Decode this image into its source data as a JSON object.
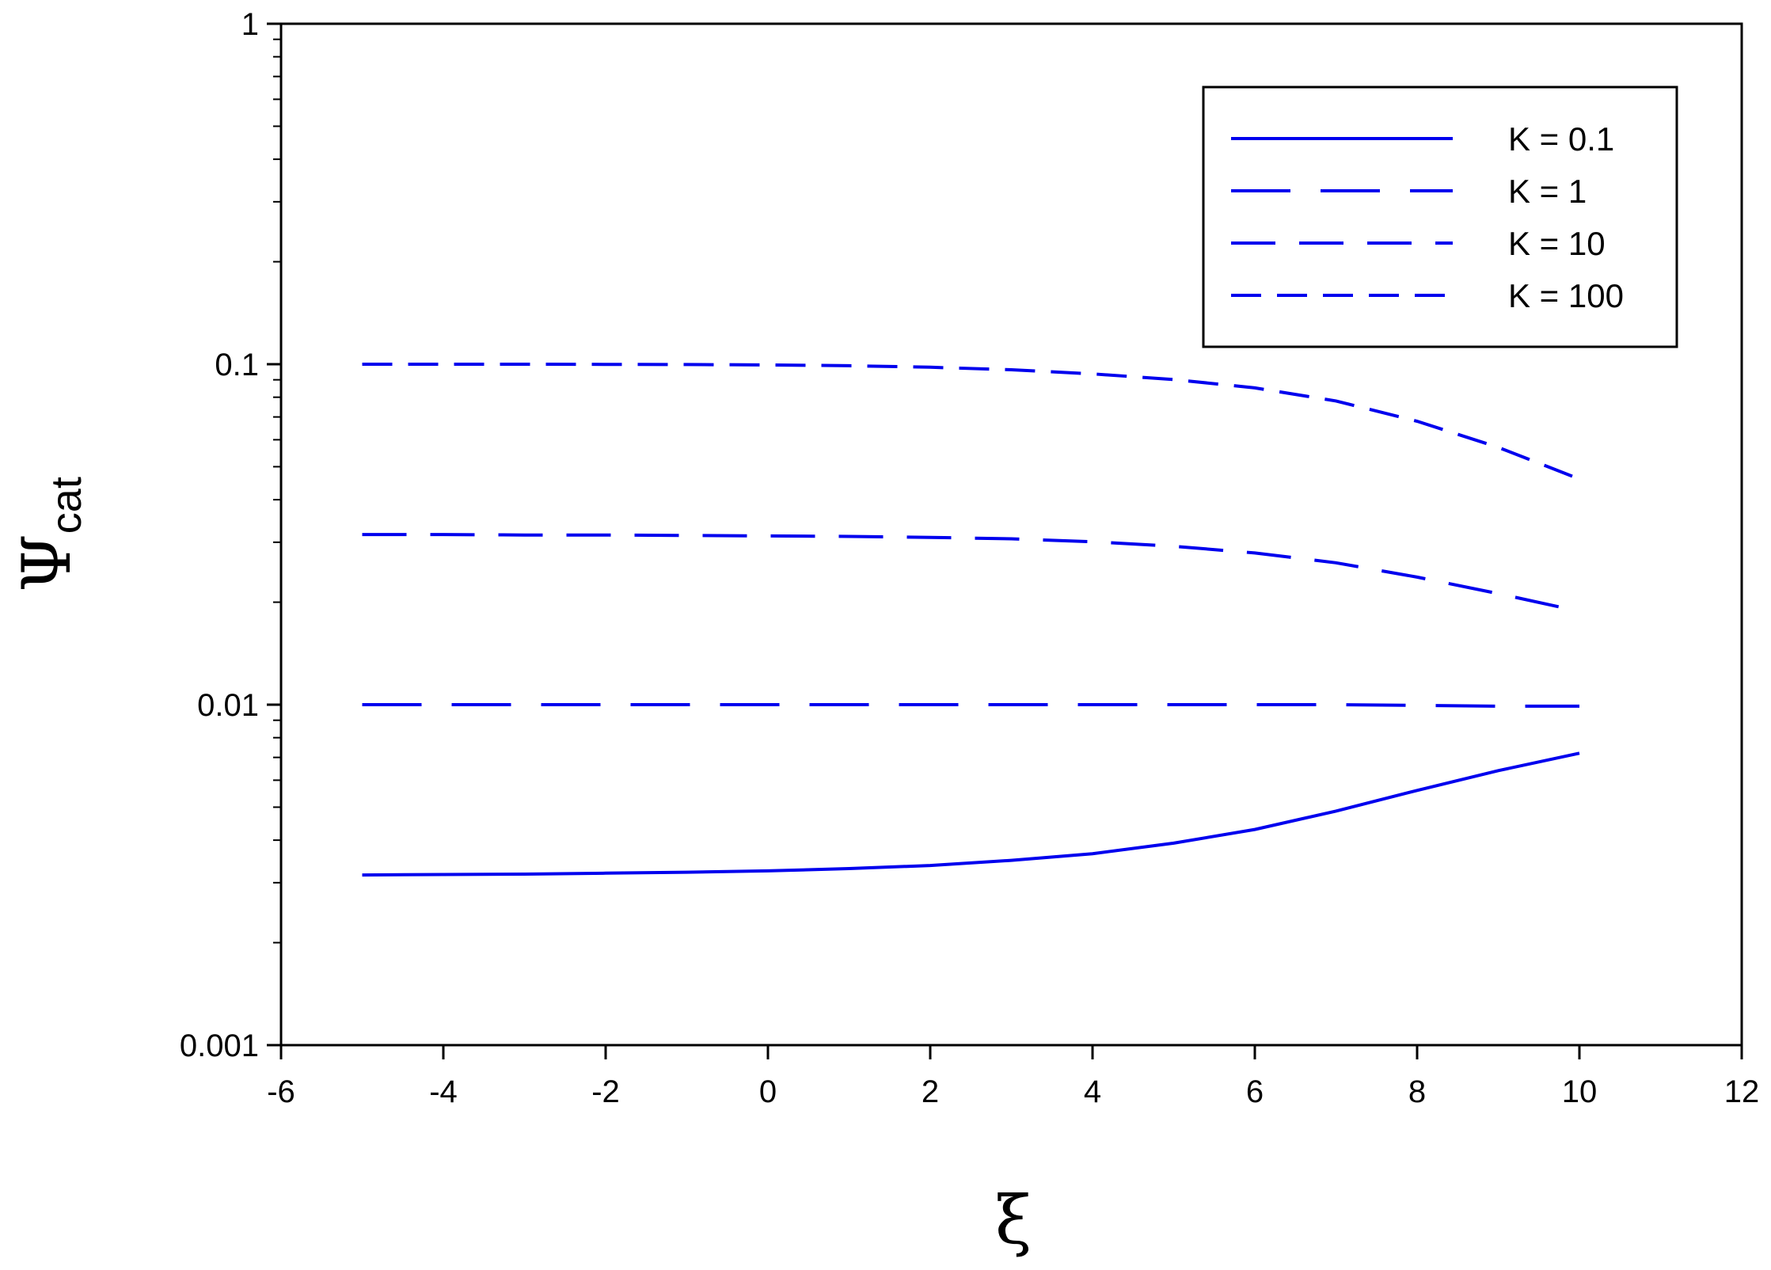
{
  "chart_data": {
    "type": "line",
    "title": "",
    "xlabel": "ξ",
    "ylabel": {
      "main": "Ψ",
      "sub": "cat"
    },
    "xlim": [
      -6,
      12
    ],
    "ylim": [
      0.001,
      1
    ],
    "yscale": "log",
    "xticks": [
      -6,
      -4,
      -2,
      0,
      2,
      4,
      6,
      8,
      10,
      12
    ],
    "xtick_labels": [
      "-6",
      "-4",
      "-2",
      "0",
      "2",
      "4",
      "6",
      "8",
      "10",
      "12"
    ],
    "yticks": [
      0.001,
      0.01,
      0.1,
      1
    ],
    "ytick_labels": [
      "0.001",
      "0.01",
      "0.1",
      "1"
    ],
    "grid": false,
    "legend_position": "top-right",
    "line_color": "#0000ee",
    "series": [
      {
        "name": "K = 0.1",
        "dash": "solid",
        "x": [
          -5,
          -4,
          -3,
          -2,
          -1,
          0,
          1,
          2,
          3,
          4,
          5,
          6,
          7,
          8,
          9,
          10
        ],
        "y": [
          0.00316,
          0.00317,
          0.00318,
          0.0032,
          0.00322,
          0.00325,
          0.0033,
          0.00337,
          0.00349,
          0.00365,
          0.00392,
          0.0043,
          0.00487,
          0.0056,
          0.0064,
          0.0072
        ]
      },
      {
        "name": "K = 1",
        "dash": "long",
        "x": [
          -5,
          -4,
          -3,
          -2,
          -1,
          0,
          1,
          2,
          3,
          4,
          5,
          6,
          7,
          8,
          9,
          10
        ],
        "y": [
          0.01,
          0.01,
          0.01,
          0.01,
          0.01,
          0.01,
          0.01,
          0.01,
          0.01,
          0.01,
          0.01,
          0.01,
          0.01,
          0.00995,
          0.0099,
          0.0099
        ]
      },
      {
        "name": "K = 10",
        "dash": "medium",
        "x": [
          -5,
          -4,
          -3,
          -2,
          -1,
          0,
          1,
          2,
          3,
          4,
          5,
          6,
          7,
          8,
          9,
          10
        ],
        "y": [
          0.0316,
          0.0316,
          0.0315,
          0.0315,
          0.0314,
          0.0313,
          0.0312,
          0.031,
          0.0307,
          0.0301,
          0.0292,
          0.0279,
          0.0261,
          0.0237,
          0.0212,
          0.0188
        ]
      },
      {
        "name": "K = 100",
        "dash": "short",
        "x": [
          -5,
          -4,
          -3,
          -2,
          -1,
          0,
          1,
          2,
          3,
          4,
          5,
          6,
          7,
          8,
          9,
          10
        ],
        "y": [
          0.1,
          0.1,
          0.1,
          0.0999,
          0.0998,
          0.0995,
          0.099,
          0.098,
          0.0963,
          0.0937,
          0.0902,
          0.0852,
          0.078,
          0.068,
          0.057,
          0.046
        ]
      }
    ]
  }
}
